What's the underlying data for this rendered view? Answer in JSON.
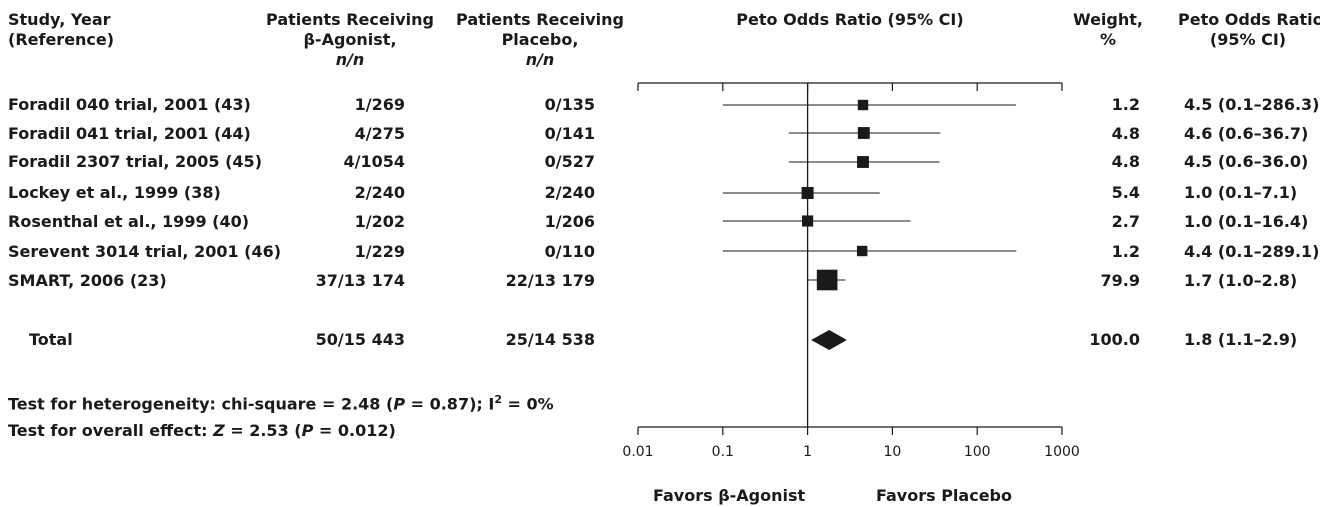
{
  "headers": {
    "study": [
      "Study, Year",
      "(Reference)"
    ],
    "beta": [
      "Patients Receiving",
      "β-Agonist,",
      "n/n"
    ],
    "placebo": [
      "Patients Receiving",
      "Placebo,",
      "n/n"
    ],
    "peto": "Peto Odds Ratio (95% CI)",
    "weight": [
      "Weight,",
      "%"
    ],
    "peto_col": [
      "Peto Odds Ratio",
      "(95% CI)"
    ]
  },
  "rows": [
    {
      "study": "Foradil 040 trial, 2001 (43)",
      "beta": "1/269",
      "placebo": "0/135",
      "weight": "1.2",
      "ci": "4.5 (0.1–286.3)"
    },
    {
      "study": "Foradil 041 trial, 2001 (44)",
      "beta": "4/275",
      "placebo": "0/141",
      "weight": "4.8",
      "ci": "4.6 (0.6–36.7)"
    },
    {
      "study": "Foradil 2307 trial, 2005 (45)",
      "beta": "4/1054",
      "placebo": "0/527",
      "weight": "4.8",
      "ci": "4.5 (0.6–36.0)"
    },
    {
      "study": "Lockey et al., 1999 (38)",
      "beta": "2/240",
      "placebo": "2/240",
      "weight": "5.4",
      "ci": "1.0 (0.1–7.1)"
    },
    {
      "study": "Rosenthal et al., 1999 (40)",
      "beta": "1/202",
      "placebo": "1/206",
      "weight": "2.7",
      "ci": "1.0 (0.1–16.4)"
    },
    {
      "study": "Serevent 3014 trial, 2001 (46)",
      "beta": "1/229",
      "placebo": "0/110",
      "weight": "1.2",
      "ci": "4.4 (0.1–289.1)"
    },
    {
      "study": "SMART, 2006 (23)",
      "beta": "37/13 174",
      "placebo": "22/13 179",
      "weight": "79.9",
      "ci": "1.7 (1.0–2.8)"
    }
  ],
  "total": {
    "label": "Total",
    "beta": "50/15 443",
    "placebo": "25/14 538",
    "weight": "100.0",
    "ci": "1.8 (1.1–2.9)"
  },
  "footnotes": {
    "heterogeneity": {
      "pre": "Test for heterogeneity: chi-square = 2.48 (",
      "p": "P",
      "mid": " = 0.87); I",
      "sup": "2",
      "post": " = 0%"
    },
    "overall": {
      "pre": "Test for overall effect: ",
      "z": "Z",
      "mid": " = 2.53 (",
      "p": "P",
      "post": " = 0.012)"
    }
  },
  "favors": {
    "left": "Favors β-Agonist",
    "right": "Favors Placebo"
  },
  "colors": {
    "ink": "#1a1a1a",
    "axis": "#222222"
  },
  "chart_data": {
    "type": "forest",
    "scale": "log",
    "xlim": [
      0.01,
      1000
    ],
    "xticks": [
      "0.01",
      "0.1",
      "1",
      "10",
      "100",
      "1000"
    ],
    "reference_line": 1,
    "studies": [
      {
        "or": 4.5,
        "lo": 0.1,
        "hi": 286.3,
        "weight": 1.2
      },
      {
        "or": 4.6,
        "lo": 0.6,
        "hi": 36.7,
        "weight": 4.8
      },
      {
        "or": 4.5,
        "lo": 0.6,
        "hi": 36.0,
        "weight": 4.8
      },
      {
        "or": 1.0,
        "lo": 0.1,
        "hi": 7.1,
        "weight": 5.4
      },
      {
        "or": 1.0,
        "lo": 0.1,
        "hi": 16.4,
        "weight": 2.7
      },
      {
        "or": 4.4,
        "lo": 0.1,
        "hi": 289.1,
        "weight": 1.2
      },
      {
        "or": 1.7,
        "lo": 1.0,
        "hi": 2.8,
        "weight": 79.9
      }
    ],
    "pooled": {
      "or": 1.8,
      "lo": 1.1,
      "hi": 2.9
    }
  }
}
